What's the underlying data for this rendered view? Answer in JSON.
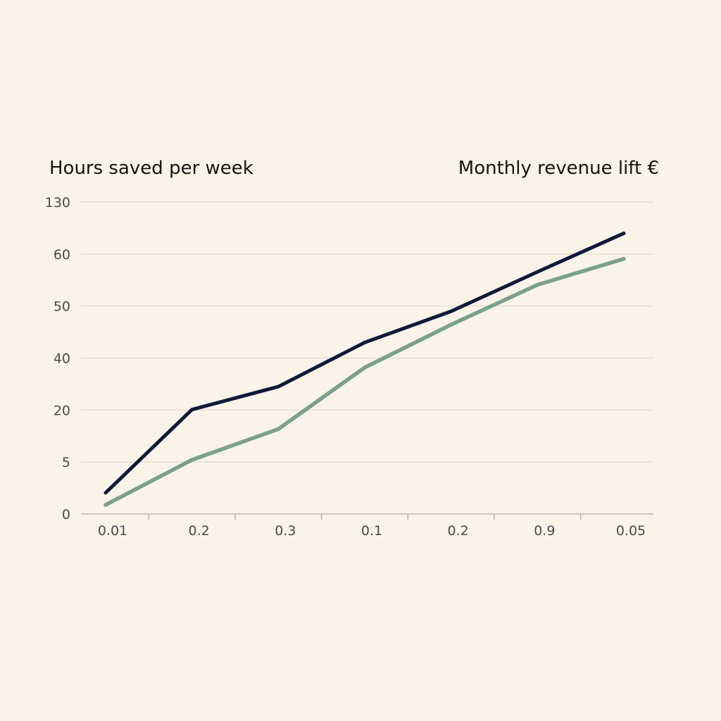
{
  "chart_data": {
    "type": "line",
    "left_axis_title": "Hours saved per week",
    "right_axis_title": "Monthly revenue lift €",
    "y_tick_labels": [
      "0",
      "5",
      "20",
      "40",
      "50",
      "60",
      "130"
    ],
    "x_tick_labels": [
      "0.01",
      "0.2",
      "0.3",
      "0.1",
      "0.2",
      "0.9",
      "0.05"
    ],
    "grid": true,
    "series": [
      {
        "color": "#0f1a3a",
        "values": [
          4.9,
          24.1,
          29.4,
          39.6,
          46.8,
          55.9,
          64.8
        ]
      },
      {
        "color": "#7aa08e",
        "values": [
          2.1,
          12.5,
          19.6,
          33.8,
          43.7,
          52.9,
          58.9
        ]
      }
    ]
  }
}
